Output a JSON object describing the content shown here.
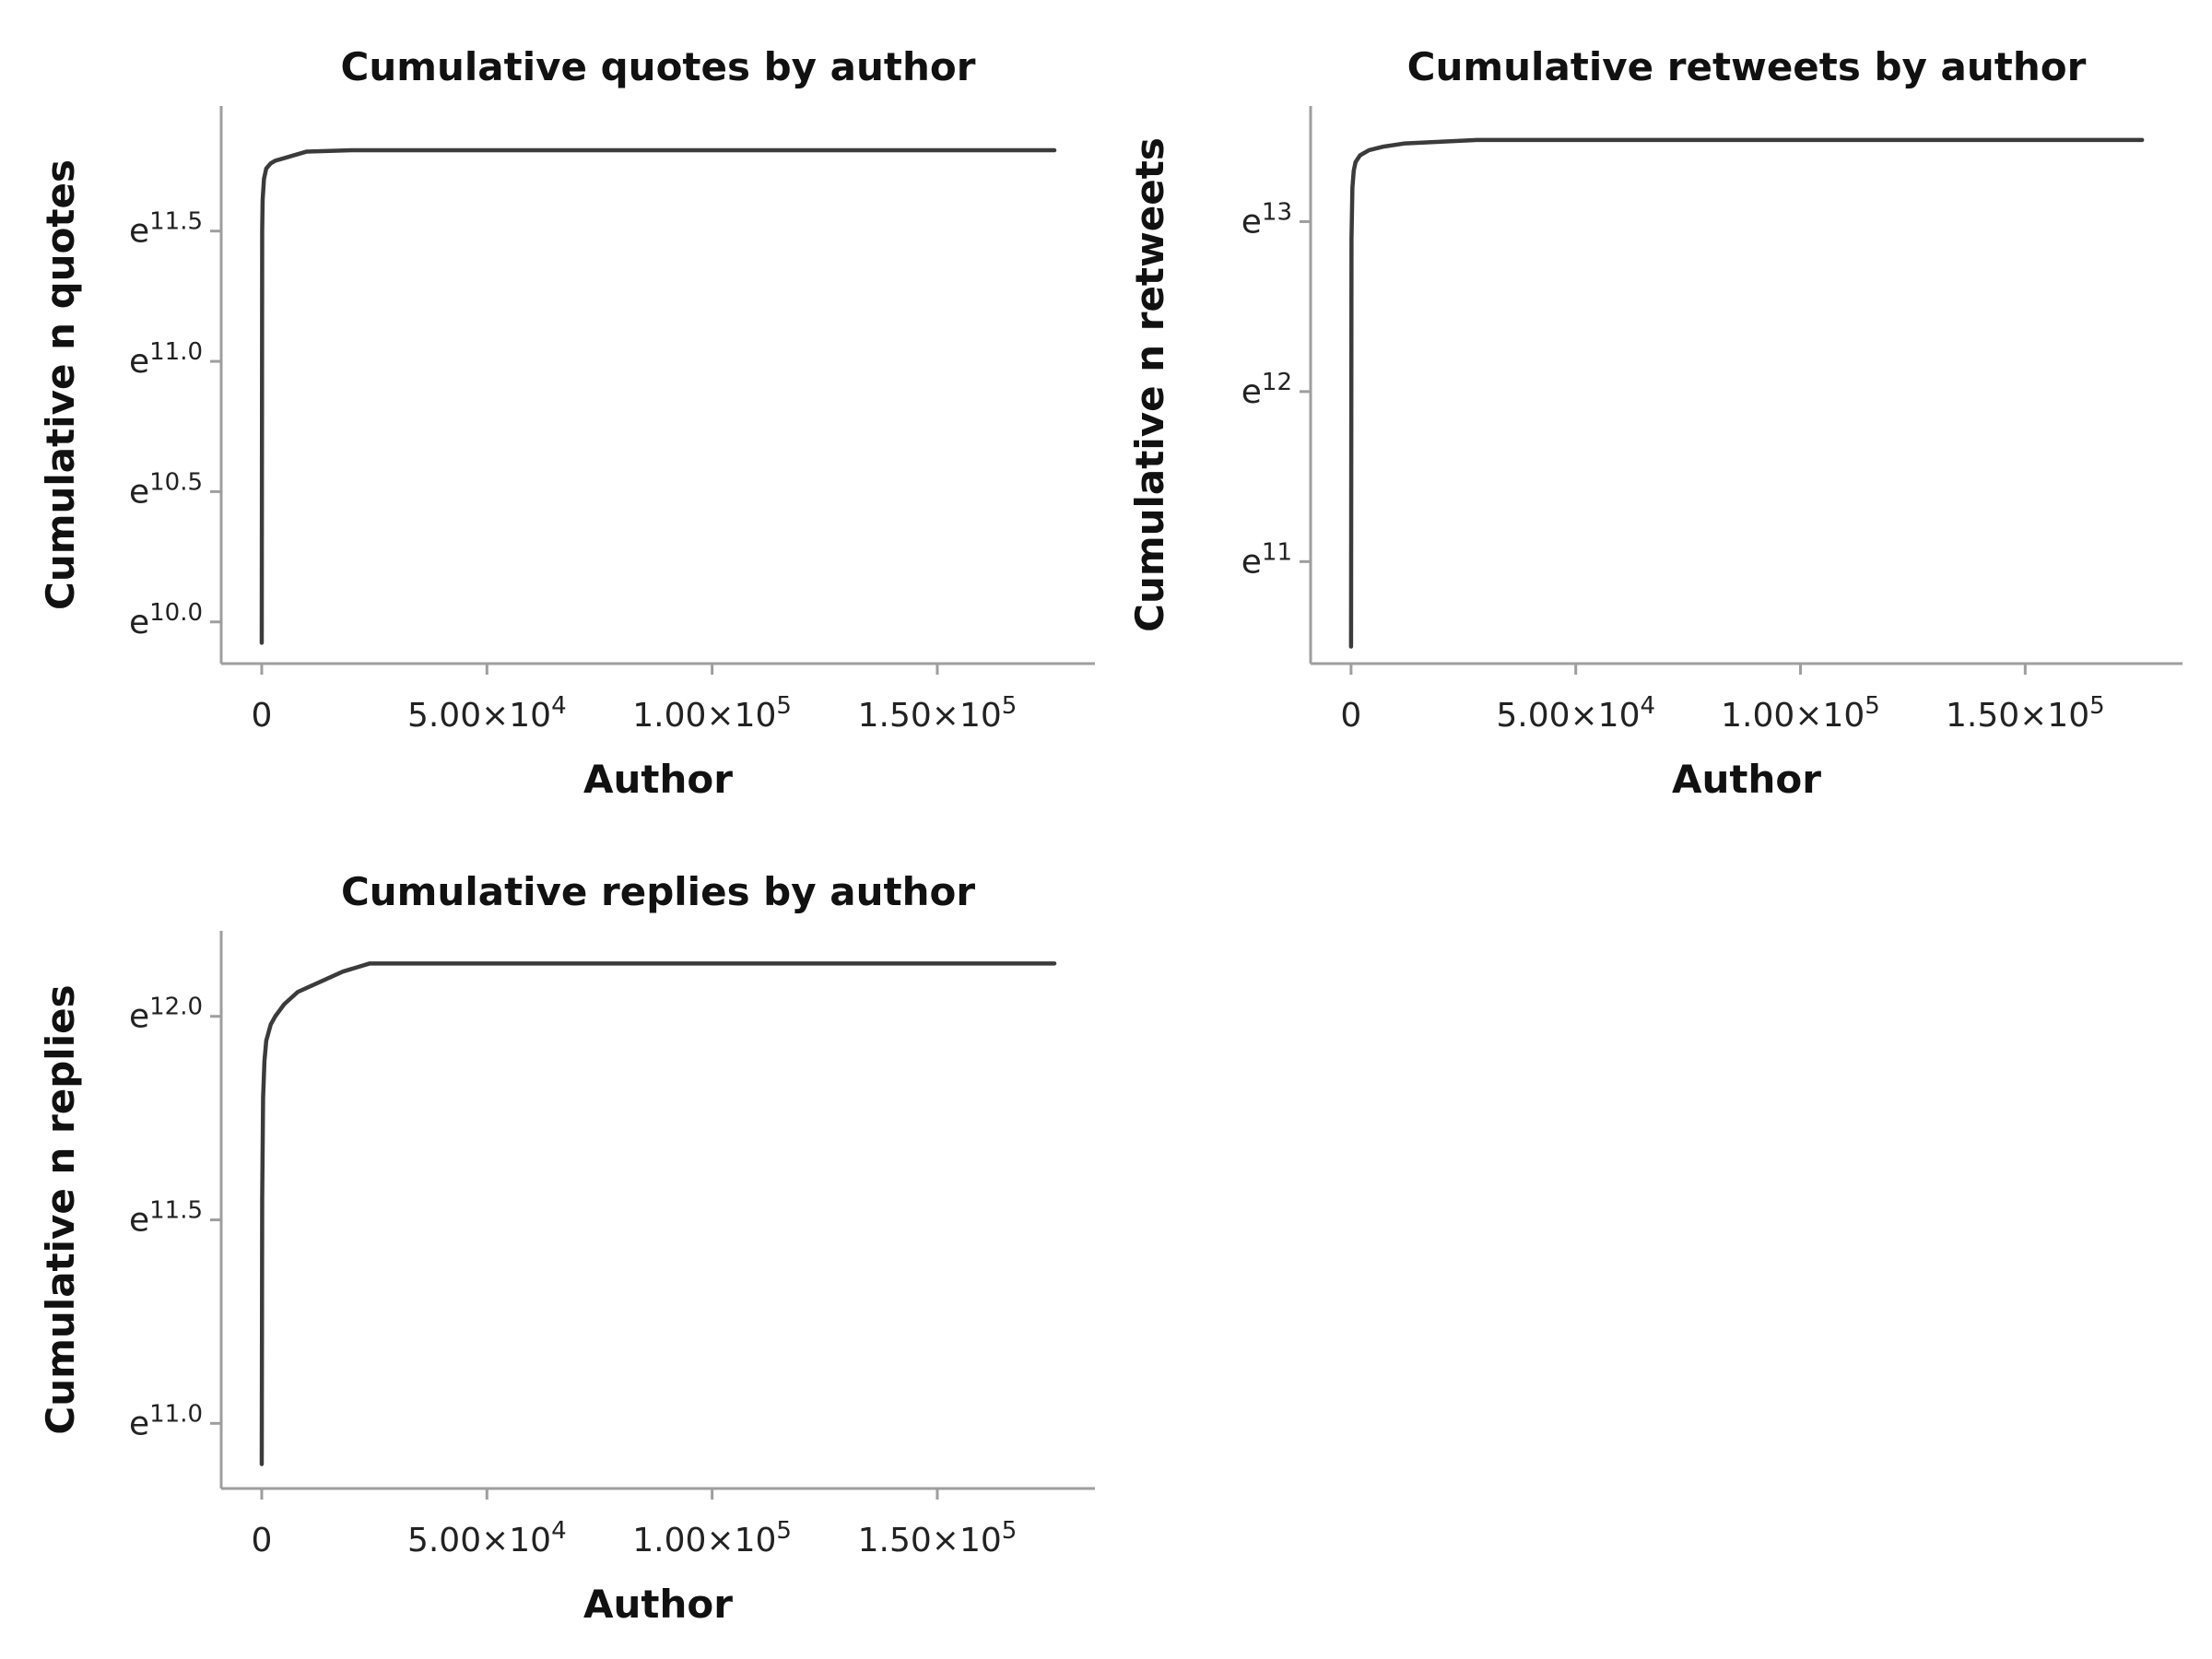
{
  "chart_data": [
    {
      "type": "line",
      "title": "Cumulative quotes by author",
      "xlabel": "Author",
      "ylabel": "Cumulative n quotes",
      "y_scale": "log",
      "xlim": [
        -9000,
        185000
      ],
      "ylim_exponent": [
        9.84,
        11.98
      ],
      "x_ticks": [
        0,
        50000,
        100000,
        150000
      ],
      "x_tick_labels": [
        {
          "base": "0",
          "sup": ""
        },
        {
          "base": "5.00×10",
          "sup": "4"
        },
        {
          "base": "1.00×10",
          "sup": "5"
        },
        {
          "base": "1.50×10",
          "sup": "5"
        }
      ],
      "y_ticks_exponent": [
        10.0,
        10.5,
        11.0,
        11.5
      ],
      "y_tick_labels": [
        {
          "base": "e",
          "sup": "10.0"
        },
        {
          "base": "e",
          "sup": "10.5"
        },
        {
          "base": "e",
          "sup": "11.0"
        },
        {
          "base": "e",
          "sup": "11.5"
        }
      ],
      "series": [
        {
          "x": [
            0,
            100,
            200,
            500,
            1000,
            2000,
            3000,
            5000,
            7000,
            10000,
            20000,
            50000,
            100000,
            150000,
            176000
          ],
          "y_exponent": [
            9.92,
            11.5,
            11.62,
            11.7,
            11.74,
            11.76,
            11.77,
            11.78,
            11.79,
            11.805,
            11.81,
            11.81,
            11.81,
            11.81,
            11.81
          ]
        }
      ]
    },
    {
      "type": "line",
      "title": "Cumulative retweets by author",
      "xlabel": "Author",
      "ylabel": "Cumulative n retweets",
      "y_scale": "log",
      "xlim": [
        -9000,
        185000
      ],
      "ylim_exponent": [
        10.4,
        13.68
      ],
      "x_ticks": [
        0,
        50000,
        100000,
        150000
      ],
      "x_tick_labels": [
        {
          "base": "0",
          "sup": ""
        },
        {
          "base": "5.00×10",
          "sup": "4"
        },
        {
          "base": "1.00×10",
          "sup": "5"
        },
        {
          "base": "1.50×10",
          "sup": "5"
        }
      ],
      "y_ticks_exponent": [
        11,
        12,
        13
      ],
      "y_tick_labels": [
        {
          "base": "e",
          "sup": "11"
        },
        {
          "base": "e",
          "sup": "12"
        },
        {
          "base": "e",
          "sup": "13"
        }
      ],
      "series": [
        {
          "x": [
            0,
            100,
            300,
            600,
            1000,
            2000,
            4000,
            7000,
            12000,
            20000,
            28000,
            50000,
            100000,
            150000,
            176000
          ],
          "y_exponent": [
            10.5,
            12.9,
            13.2,
            13.3,
            13.35,
            13.39,
            13.42,
            13.44,
            13.46,
            13.47,
            13.48,
            13.48,
            13.48,
            13.48,
            13.48
          ]
        }
      ]
    },
    {
      "type": "line",
      "title": "Cumulative replies by author",
      "xlabel": "Author",
      "ylabel": "Cumulative n replies",
      "y_scale": "log",
      "xlim": [
        -9000,
        185000
      ],
      "ylim_exponent": [
        10.84,
        12.21
      ],
      "x_ticks": [
        0,
        50000,
        100000,
        150000
      ],
      "x_tick_labels": [
        {
          "base": "0",
          "sup": ""
        },
        {
          "base": "5.00×10",
          "sup": "4"
        },
        {
          "base": "1.00×10",
          "sup": "5"
        },
        {
          "base": "1.50×10",
          "sup": "5"
        }
      ],
      "y_ticks_exponent": [
        11.0,
        11.5,
        12.0
      ],
      "y_tick_labels": [
        {
          "base": "e",
          "sup": "11.0"
        },
        {
          "base": "e",
          "sup": "11.5"
        },
        {
          "base": "e",
          "sup": "12.0"
        }
      ],
      "series": [
        {
          "x": [
            0,
            100,
            300,
            600,
            1000,
            2000,
            3000,
            5000,
            8000,
            12000,
            18000,
            24000,
            50000,
            100000,
            150000,
            176000
          ],
          "y_exponent": [
            10.9,
            11.55,
            11.8,
            11.89,
            11.94,
            11.98,
            12.0,
            12.03,
            12.06,
            12.08,
            12.11,
            12.13,
            12.13,
            12.13,
            12.13,
            12.13
          ]
        }
      ]
    }
  ]
}
